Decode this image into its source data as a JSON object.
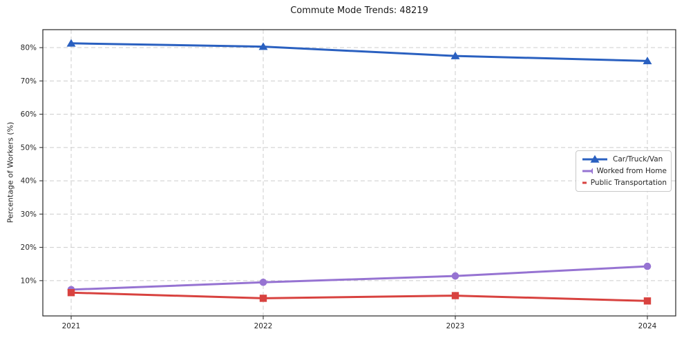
{
  "chart_data": {
    "type": "line",
    "title": "Commute Mode Trends: 48219",
    "xlabel": "",
    "ylabel": "Percentage of Workers (%)",
    "x": [
      "2021",
      "2022",
      "2023",
      "2024"
    ],
    "ylim": [
      -0.6,
      85.4
    ],
    "ytick_values": [
      10,
      20,
      30,
      40,
      50,
      60,
      70,
      80
    ],
    "ytick_labels": [
      "10%",
      "20%",
      "30%",
      "40%",
      "50%",
      "60%",
      "70%",
      "80%"
    ],
    "grid": "dashed-both-axes",
    "grid_color": "#cccccc",
    "legend_position": "center-right",
    "series": [
      {
        "name": "Car/Truck/Van",
        "marker": "triangle",
        "color": "#2a60c0",
        "values": [
          81.3,
          80.3,
          77.5,
          76.0
        ]
      },
      {
        "name": "Worked from Home",
        "marker": "circle",
        "color": "#9673d2",
        "values": [
          7.3,
          9.5,
          11.4,
          14.3
        ]
      },
      {
        "name": "Public Transportation",
        "marker": "square",
        "color": "#d8423f",
        "values": [
          6.4,
          4.7,
          5.5,
          3.9
        ]
      }
    ]
  }
}
